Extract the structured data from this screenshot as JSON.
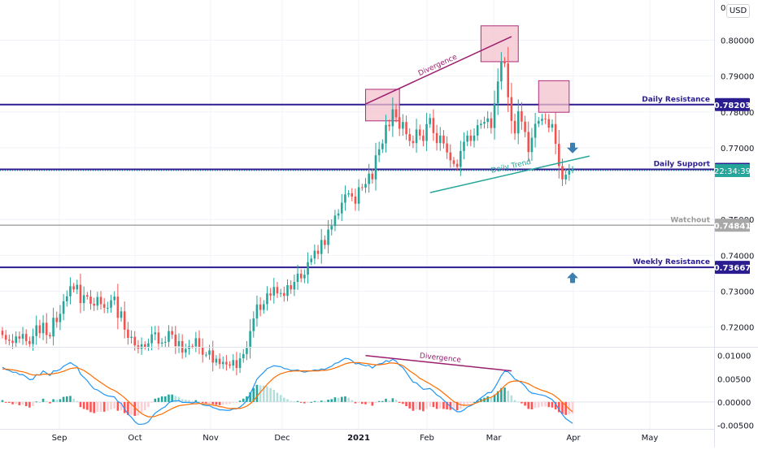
{
  "currency_label": "USD",
  "chart_data": [
    {
      "type": "candlestick",
      "symbol": "",
      "price_axis": {
        "range": [
          0.7145,
          0.8112
        ],
        "ticks": [
          "0.80000",
          "0.79000",
          "0.78000",
          "0.77000",
          "0.75000",
          "0.74000",
          "0.73000",
          "0.72000"
        ],
        "top_partial_label": "0"
      },
      "x_axis": {
        "labels": [
          "Sep",
          "Oct",
          "Nov",
          "Dec",
          "2021",
          "Feb",
          "Mar",
          "Apr",
          "May"
        ]
      },
      "closes": [
        0.7178,
        0.7165,
        0.7162,
        0.7156,
        0.7174,
        0.7168,
        0.7181,
        0.7161,
        0.7153,
        0.7175,
        0.7205,
        0.7183,
        0.7212,
        0.7178,
        0.7174,
        0.7226,
        0.7214,
        0.7237,
        0.7272,
        0.7286,
        0.7314,
        0.7305,
        0.7318,
        0.7267,
        0.7289,
        0.7285,
        0.7265,
        0.726,
        0.7284,
        0.7264,
        0.7254,
        0.7254,
        0.7275,
        0.7285,
        0.7226,
        0.7244,
        0.7193,
        0.717,
        0.7173,
        0.7149,
        0.714,
        0.7152,
        0.7145,
        0.7155,
        0.718,
        0.7185,
        0.7154,
        0.7157,
        0.7159,
        0.7189,
        0.7179,
        0.7147,
        0.7161,
        0.7129,
        0.7139,
        0.7147,
        0.7146,
        0.7169,
        0.7144,
        0.7123,
        0.7123,
        0.7135,
        0.7101,
        0.7112,
        0.7097,
        0.7103,
        0.7096,
        0.7093,
        0.7108,
        0.7086,
        0.7113,
        0.7125,
        0.7142,
        0.7189,
        0.7224,
        0.7263,
        0.7248,
        0.7264,
        0.7294,
        0.7288,
        0.7312,
        0.7294,
        0.7295,
        0.7287,
        0.7317,
        0.7305,
        0.7326,
        0.7349,
        0.7336,
        0.7346,
        0.7381,
        0.7391,
        0.7413,
        0.7404,
        0.7443,
        0.7429,
        0.7472,
        0.7482,
        0.7511,
        0.7517,
        0.7547,
        0.757,
        0.7573,
        0.7564,
        0.7544,
        0.759,
        0.7589,
        0.7599,
        0.7628,
        0.7612,
        0.7679,
        0.7696,
        0.7712,
        0.7764,
        0.776,
        0.7807,
        0.7785,
        0.7753,
        0.7772,
        0.7738,
        0.7719,
        0.7713,
        0.7751,
        0.7734,
        0.7719,
        0.7766,
        0.7783,
        0.7741,
        0.7713,
        0.7734,
        0.7712,
        0.7687,
        0.7665,
        0.7655,
        0.7647,
        0.7691,
        0.7717,
        0.7734,
        0.7719,
        0.7734,
        0.7763,
        0.7767,
        0.7772,
        0.7782,
        0.7755,
        0.7824,
        0.7885,
        0.7941,
        0.7935,
        0.7841,
        0.7775,
        0.774,
        0.7802,
        0.7773,
        0.7744,
        0.7688,
        0.7728,
        0.7767,
        0.7775,
        0.7781,
        0.778,
        0.7756,
        0.7766,
        0.7711,
        0.7649,
        0.7612,
        0.7625,
        0.7636,
        0.7641
      ],
      "macd": [
        0.0075,
        0.007,
        0.0068,
        0.0064,
        0.0064,
        0.0059,
        0.0059,
        0.0054,
        0.0048,
        0.0049,
        0.0059,
        0.0058,
        0.0067,
        0.0062,
        0.0057,
        0.0067,
        0.0067,
        0.007,
        0.0077,
        0.0081,
        0.0085,
        0.008,
        0.0076,
        0.006,
        0.0053,
        0.0046,
        0.0036,
        0.0028,
        0.0026,
        0.0021,
        0.0016,
        0.0013,
        0.0012,
        0.0011,
        0.0001,
        -0.0003,
        -0.0015,
        -0.0026,
        -0.0033,
        -0.0042,
        -0.0048,
        -0.0048,
        -0.0047,
        -0.0043,
        -0.0033,
        -0.0024,
        -0.0019,
        -0.0014,
        -0.001,
        -0.0002,
        0.0002,
        0.0002,
        0.0003,
        -0.0001,
        -0.0001,
        -0.0001,
        -0.0002,
        0,
        -0.0002,
        -0.0006,
        -0.0008,
        -0.0008,
        -0.0012,
        -0.0014,
        -0.0017,
        -0.0017,
        -0.0018,
        -0.0018,
        -0.0015,
        -0.0015,
        -0.0011,
        -0.0005,
        0.0003,
        0.0017,
        0.0033,
        0.0049,
        0.0057,
        0.0064,
        0.0072,
        0.0075,
        0.0078,
        0.0077,
        0.0076,
        0.0072,
        0.0071,
        0.0068,
        0.0068,
        0.0069,
        0.0066,
        0.0064,
        0.0066,
        0.0067,
        0.0069,
        0.0068,
        0.0071,
        0.007,
        0.0074,
        0.0077,
        0.0083,
        0.0085,
        0.009,
        0.0094,
        0.0093,
        0.0089,
        0.0082,
        0.0083,
        0.008,
        0.0078,
        0.0079,
        0.0073,
        0.0079,
        0.0082,
        0.0083,
        0.0089,
        0.0087,
        0.0092,
        0.0088,
        0.0079,
        0.0074,
        0.0064,
        0.0053,
        0.0043,
        0.0041,
        0.0034,
        0.0027,
        0.0028,
        0.0029,
        0.0023,
        0.0015,
        0.0011,
        0.0004,
        -0.0003,
        -0.001,
        -0.0016,
        -0.0021,
        -0.0021,
        -0.0017,
        -0.0011,
        -0.0008,
        -0.0004,
        0.0003,
        0.0009,
        0.0014,
        0.002,
        0.002,
        0.003,
        0.0043,
        0.0057,
        0.0066,
        0.0065,
        0.0058,
        0.0049,
        0.0046,
        0.0041,
        0.0034,
        0.0024,
        0.0019,
        0.0018,
        0.0016,
        0.0015,
        0.0013,
        0.0009,
        0.0005,
        -0.0004,
        -0.0016,
        -0.0027,
        -0.0036,
        -0.0041,
        -0.0046
      ],
      "signal": [
        0.0071,
        0.0071,
        0.007,
        0.0069,
        0.0068,
        0.0066,
        0.0065,
        0.0063,
        0.006,
        0.0058,
        0.0058,
        0.0058,
        0.006,
        0.006,
        0.006,
        0.0061,
        0.0062,
        0.0064,
        0.0066,
        0.0069,
        0.0072,
        0.0073,
        0.0074,
        0.0071,
        0.0068,
        0.0063,
        0.0058,
        0.0052,
        0.0047,
        0.0042,
        0.0037,
        0.0032,
        0.0028,
        0.0025,
        0.002,
        0.0015,
        0.0009,
        0.0002,
        -0.0005,
        -0.0012,
        -0.0019,
        -0.0025,
        -0.0029,
        -0.0032,
        -0.0032,
        -0.0031,
        -0.0028,
        -0.0026,
        -0.0022,
        -0.0018,
        -0.0014,
        -0.0011,
        -0.0008,
        -0.0007,
        -0.0006,
        -0.0005,
        -0.0004,
        -0.0004,
        -0.0003,
        -0.0004,
        -0.0005,
        -0.0005,
        -0.0007,
        -0.0008,
        -0.001,
        -0.0011,
        -0.0013,
        -0.0014,
        -0.0014,
        -0.0014,
        -0.0014,
        -0.0012,
        -0.0009,
        -0.0004,
        0.0003,
        0.0012,
        0.0021,
        0.0029,
        0.0038,
        0.0045,
        0.0052,
        0.0057,
        0.0061,
        0.0063,
        0.0065,
        0.0066,
        0.0067,
        0.0067,
        0.0067,
        0.0067,
        0.0067,
        0.0067,
        0.0067,
        0.0067,
        0.0068,
        0.0068,
        0.0069,
        0.0071,
        0.0073,
        0.0076,
        0.0079,
        0.0082,
        0.0084,
        0.0085,
        0.0085,
        0.0085,
        0.0084,
        0.0083,
        0.0082,
        0.0081,
        0.008,
        0.008,
        0.0081,
        0.0082,
        0.0084,
        0.0084,
        0.0083,
        0.0081,
        0.0078,
        0.0073,
        0.0067,
        0.0062,
        0.0057,
        0.0051,
        0.0047,
        0.0043,
        0.0039,
        0.0034,
        0.003,
        0.0025,
        0.0019,
        0.0013,
        0.0007,
        0.0001,
        -0.0003,
        -0.0006,
        -0.0007,
        -0.0007,
        -0.0006,
        -0.0004,
        -0.0001,
        0.0002,
        0.0005,
        0.0008,
        0.001,
        0.0014,
        0.002,
        0.0027,
        0.0035,
        0.0041,
        0.0044,
        0.0045,
        0.0045,
        0.0044,
        0.0042,
        0.0039,
        0.0035,
        0.0031,
        0.0028,
        0.0025,
        0.0023,
        0.002,
        0.0017,
        0.0012,
        0.0006,
        -0.0001,
        -0.0008,
        -0.0015,
        -0.0021
      ],
      "macd_axis": {
        "range": [
          -0.0058,
          0.0117
        ],
        "ticks": [
          "0.01000",
          "0.00500",
          "0.00000",
          "-0.00500"
        ]
      },
      "horizontal_levels": [
        {
          "label": "Daily Resistance",
          "value_label": "0.78203",
          "value": 0.78203,
          "color": "#2b1d8f"
        },
        {
          "label": "Daily Support",
          "value_label": "0.76399",
          "value": 0.76399,
          "color": "#2b1d8f"
        },
        {
          "label": "Watchout",
          "value_label": "0.74841",
          "value": 0.74841,
          "color": "#a8a8a8"
        },
        {
          "label": "Weekly Resistance",
          "value_label": "0.73667",
          "value": 0.73667,
          "color": "#2b1d8f"
        }
      ],
      "countdown_label": "22:34:39",
      "annotations": {
        "price_divergence": "Divergence",
        "macd_divergence": "Divergence",
        "trend_line": "Daily Trend"
      },
      "colors": {
        "up": "#26a69a",
        "down": "#ef5350",
        "level": "#2b1d8f",
        "countdown": "#26a69a",
        "divergence": "#9c1f6e",
        "box_fill": "#f3c2ce",
        "box_stroke": "#b02c7b",
        "trend": "#26a69a",
        "arrow": "#3e7fb2",
        "macd": "#2196f3",
        "signal": "#ff6d00"
      }
    }
  ]
}
